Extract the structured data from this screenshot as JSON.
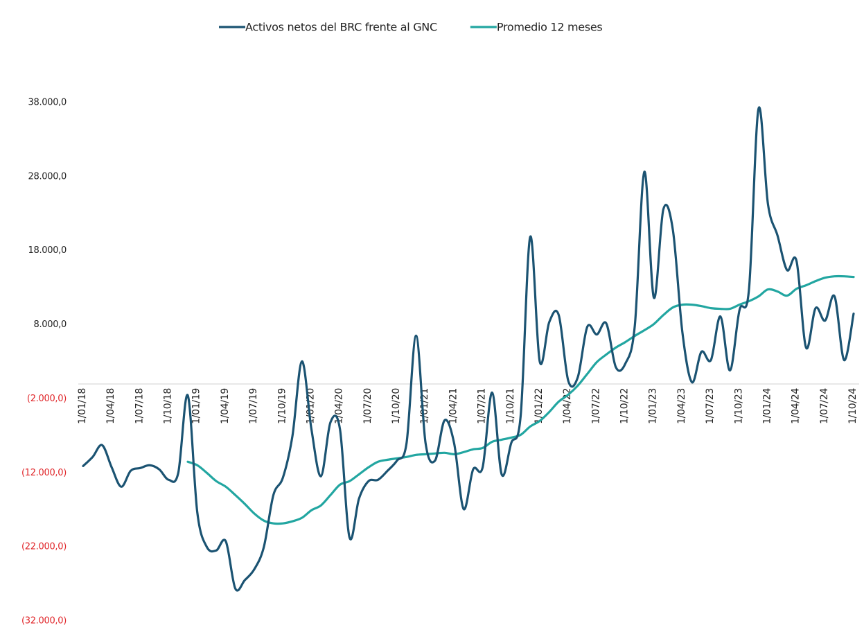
{
  "chart_data": {
    "type": "line",
    "categories": [
      "1/01/18",
      null,
      null,
      "1/04/18",
      null,
      null,
      "1/07/18",
      null,
      null,
      "1/10/18",
      null,
      null,
      "1/01/19",
      null,
      null,
      "1/04/19",
      null,
      null,
      "1/07/19",
      null,
      null,
      "1/10/19",
      null,
      null,
      "1/01/20",
      null,
      null,
      "1/04/20",
      null,
      null,
      "1/07/20",
      null,
      null,
      "1/10/20",
      null,
      null,
      "1/01/21",
      null,
      null,
      "1/04/21",
      null,
      null,
      "1/07/21",
      null,
      null,
      "1/10/21",
      null,
      null,
      "1/01/22",
      null,
      null,
      "1/04/22",
      null,
      null,
      "1/07/22",
      null,
      null,
      "1/10/22",
      null,
      null,
      "1/01/23",
      null,
      null,
      "1/04/23",
      null,
      null,
      "1/07/23",
      null,
      null,
      "1/10/23",
      null,
      null,
      "1/01/24",
      null,
      null,
      "1/04/24",
      null,
      null,
      "1/07/24",
      null,
      null,
      "1/10/24"
    ],
    "series": [
      {
        "name": "Activos netos del BRC frente al GNC",
        "color": "#1b5372",
        "values": [
          -11070,
          -9850,
          -8260,
          -11250,
          -13870,
          -11720,
          -11350,
          -10970,
          -11530,
          -12940,
          -12000,
          -1530,
          -17330,
          -22000,
          -22470,
          -21250,
          -27630,
          -26480,
          -25000,
          -22000,
          -15000,
          -12650,
          -7050,
          3050,
          -6100,
          -12460,
          -5180,
          -6100,
          -20700,
          -15480,
          -13120,
          -12940,
          -11720,
          -10330,
          -7990,
          6520,
          -7990,
          -10330,
          -4900,
          -7990,
          -16880,
          -11530,
          -11250,
          -1160,
          -12200,
          -7990,
          -4250,
          19870,
          3050,
          8350,
          9310,
          430,
          900,
          7720,
          6690,
          8180,
          2280,
          2750,
          7900,
          28650,
          11650,
          23600,
          20800,
          6970,
          240,
          4350,
          3230,
          9120,
          1830,
          9960,
          12770,
          37150,
          24250,
          20050,
          15380,
          16600,
          4920,
          10240,
          8560,
          11830,
          3230,
          9500
        ]
      },
      {
        "name": "Promedio 12 meses",
        "color": "#22a6a1",
        "values": [
          null,
          null,
          null,
          null,
          null,
          null,
          null,
          null,
          null,
          null,
          null,
          -10500,
          -10970,
          -12000,
          -13120,
          -13870,
          -15000,
          -16200,
          -17500,
          -18450,
          -18820,
          -18820,
          -18540,
          -18070,
          -17050,
          -16390,
          -15000,
          -13590,
          -13120,
          -12200,
          -11250,
          -10500,
          -10230,
          -10040,
          -9850,
          -9570,
          -9480,
          -9380,
          -9290,
          -9480,
          -9200,
          -8820,
          -8640,
          -7800,
          -7520,
          -7240,
          -6860,
          -5740,
          -4990,
          -3780,
          -2380,
          -1440,
          -220,
          1360,
          2950,
          3980,
          4920,
          5660,
          6500,
          7260,
          8090,
          9310,
          10340,
          10710,
          10710,
          10520,
          10240,
          10150,
          10150,
          10710,
          11180,
          11830,
          12770,
          12490,
          11930,
          12860,
          13330,
          13890,
          14350,
          14540,
          14540,
          14450
        ]
      }
    ],
    "ylim": [
      -32000,
      38000
    ],
    "yticks": [
      {
        "value": -32000,
        "label": "(32.000,0)"
      },
      {
        "value": -22000,
        "label": "(22.000,0)"
      },
      {
        "value": -12000,
        "label": "(12.000,0)"
      },
      {
        "value": -2000,
        "label": "(2.000,0)"
      },
      {
        "value": 8000,
        "label": "8.000,0"
      },
      {
        "value": 18000,
        "label": "18.000,0"
      },
      {
        "value": 28000,
        "label": "28.000,0"
      },
      {
        "value": 38000,
        "label": "38.000,0"
      }
    ],
    "negative_tick_color": "#e0262a",
    "grid": false,
    "legend": "top"
  }
}
